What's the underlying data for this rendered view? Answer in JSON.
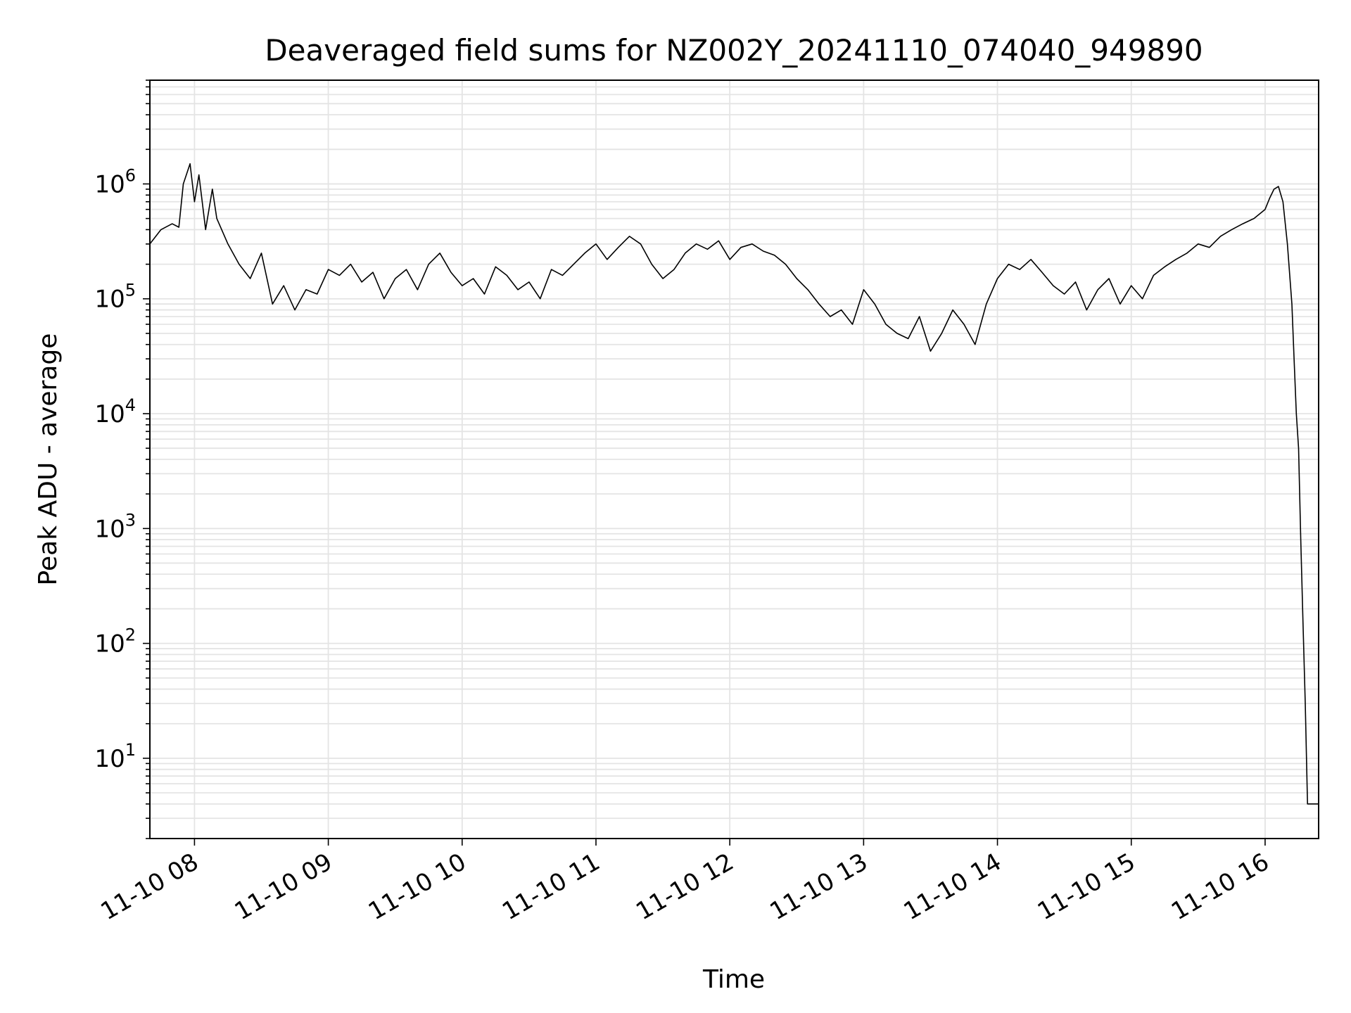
{
  "chart_data": {
    "type": "line",
    "title": "Deaveraged field sums for NZ002Y_20241110_074040_949890",
    "xlabel": "Time",
    "ylabel": "Peak ADU - average",
    "yscale": "log",
    "grid": true,
    "line_color": "#000000",
    "xlim": [
      "2024-11-10 07:40",
      "2024-11-10 16:24"
    ],
    "ylim": [
      2,
      8000000
    ],
    "x_tick_labels": [
      "11-10 08",
      "11-10 09",
      "11-10 10",
      "11-10 11",
      "11-10 12",
      "11-10 13",
      "11-10 14",
      "11-10 15",
      "11-10 16"
    ],
    "y_tick_labels": [
      {
        "base": "10",
        "exp": "1"
      },
      {
        "base": "10",
        "exp": "2"
      },
      {
        "base": "10",
        "exp": "3"
      },
      {
        "base": "10",
        "exp": "4"
      },
      {
        "base": "10",
        "exp": "5"
      },
      {
        "base": "10",
        "exp": "6"
      }
    ],
    "series": [
      {
        "x": [
          "07:40",
          "07:45",
          "07:50",
          "07:53",
          "07:55",
          "07:58",
          "08:00",
          "08:02",
          "08:05",
          "08:08",
          "08:10",
          "08:15",
          "08:20",
          "08:25",
          "08:30",
          "08:35",
          "08:40",
          "08:45",
          "08:50",
          "08:55",
          "09:00",
          "09:05",
          "09:10",
          "09:15",
          "09:20",
          "09:25",
          "09:30",
          "09:35",
          "09:40",
          "09:45",
          "09:50",
          "09:55",
          "10:00",
          "10:05",
          "10:10",
          "10:15",
          "10:20",
          "10:25",
          "10:30",
          "10:35",
          "10:40",
          "10:45",
          "10:50",
          "10:55",
          "11:00",
          "11:05",
          "11:10",
          "11:15",
          "11:20",
          "11:25",
          "11:30",
          "11:35",
          "11:40",
          "11:45",
          "11:50",
          "11:55",
          "12:00",
          "12:05",
          "12:10",
          "12:15",
          "12:20",
          "12:25",
          "12:30",
          "12:35",
          "12:40",
          "12:45",
          "12:50",
          "12:55",
          "13:00",
          "13:05",
          "13:10",
          "13:15",
          "13:20",
          "13:25",
          "13:30",
          "13:35",
          "13:40",
          "13:45",
          "13:50",
          "13:55",
          "14:00",
          "14:05",
          "14:10",
          "14:15",
          "14:20",
          "14:25",
          "14:30",
          "14:35",
          "14:40",
          "14:45",
          "14:50",
          "14:55",
          "15:00",
          "15:05",
          "15:10",
          "15:15",
          "15:20",
          "15:25",
          "15:30",
          "15:35",
          "15:40",
          "15:45",
          "15:50",
          "15:55",
          "16:00",
          "16:02",
          "16:04",
          "16:06",
          "16:08",
          "16:10",
          "16:12",
          "16:13",
          "16:14",
          "16:15",
          "16:16",
          "16:17",
          "16:18",
          "16:19",
          "16:20",
          "16:21",
          "16:22",
          "16:24"
        ],
        "y": [
          300000,
          400000,
          450000,
          420000,
          1000000,
          1500000,
          700000,
          1200000,
          400000,
          900000,
          500000,
          300000,
          200000,
          150000,
          250000,
          90000,
          130000,
          80000,
          120000,
          110000,
          180000,
          160000,
          200000,
          140000,
          170000,
          100000,
          150000,
          180000,
          120000,
          200000,
          250000,
          170000,
          130000,
          150000,
          110000,
          190000,
          160000,
          120000,
          140000,
          100000,
          180000,
          160000,
          200000,
          250000,
          300000,
          220000,
          280000,
          350000,
          300000,
          200000,
          150000,
          180000,
          250000,
          300000,
          270000,
          320000,
          220000,
          280000,
          300000,
          260000,
          240000,
          200000,
          150000,
          120000,
          90000,
          70000,
          80000,
          60000,
          120000,
          90000,
          60000,
          50000,
          45000,
          70000,
          35000,
          50000,
          80000,
          60000,
          40000,
          90000,
          150000,
          200000,
          180000,
          220000,
          170000,
          130000,
          110000,
          140000,
          80000,
          120000,
          150000,
          90000,
          130000,
          100000,
          160000,
          190000,
          220000,
          250000,
          300000,
          280000,
          350000,
          400000,
          450000,
          500000,
          600000,
          750000,
          900000,
          950000,
          700000,
          300000,
          90000,
          30000,
          10000,
          5000,
          800,
          150,
          30,
          4,
          4,
          4,
          4,
          4
        ]
      }
    ]
  }
}
